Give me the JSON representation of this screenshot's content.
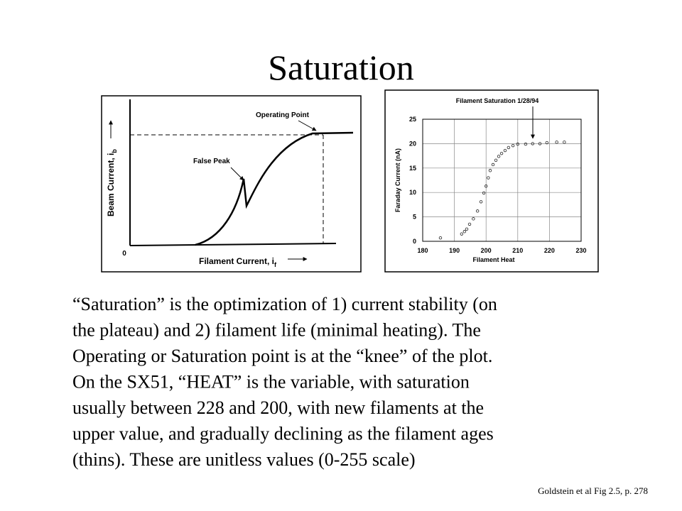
{
  "title": "Saturation",
  "chart_data": [
    {
      "type": "schematic",
      "y_label": "Beam Current, i",
      "y_label_sub": "b",
      "x_label": "Filament Current, i",
      "x_label_sub": "f",
      "origin_label": "0",
      "annotations": [
        "Operating Point",
        "False Peak"
      ]
    },
    {
      "type": "scatter",
      "title": "Filament Saturation 1/28/94",
      "x_label": "Filament Heat",
      "y_label": "Faraday Current (nA)",
      "x": [
        185.6,
        192.3,
        193.2,
        193.9,
        194.8,
        196,
        197.3,
        198.4,
        199.3,
        200,
        200.7,
        201.3,
        202.2,
        203.1,
        204,
        204.9,
        206,
        207.1,
        208.5,
        210,
        212.5,
        214.7,
        217,
        219.2,
        222.3,
        224.7
      ],
      "values": [
        0.7,
        1.5,
        2,
        2.5,
        3.5,
        4.6,
        6.2,
        8.1,
        9.9,
        11.3,
        13,
        14.5,
        15.7,
        16.6,
        17.4,
        18,
        18.6,
        19.2,
        19.6,
        19.9,
        19.9,
        20,
        20,
        20.2,
        20.3,
        20.3
      ],
      "xlim": [
        180,
        230
      ],
      "xticks": [
        180,
        190,
        200,
        210,
        220,
        230
      ],
      "ylim": [
        0,
        25
      ],
      "yticks": [
        0,
        5,
        10,
        15,
        20,
        25
      ],
      "grid": true,
      "color": "#222222"
    }
  ],
  "body": [
    "“Saturation” is the optimization of 1) current stability (on",
    "the plateau) and 2) filament life (minimal heating). The",
    "Operating or Saturation point is at the “knee” of the plot.",
    "On the SX51, “HEAT” is the variable, with saturation",
    "usually between 228 and 200, with new filaments at the",
    "upper value, and gradually declining as the filament ages",
    "(thins). These are unitless values (0-255 scale)"
  ],
  "citation": "Goldstein et al  Fig 2.5, p. 278"
}
